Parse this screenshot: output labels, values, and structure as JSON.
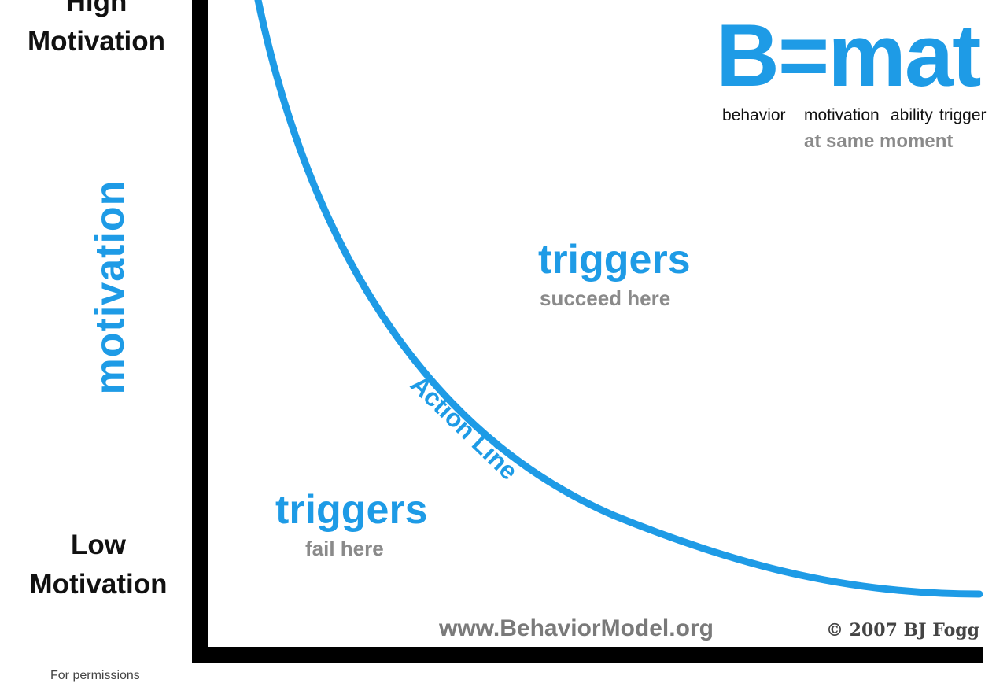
{
  "y_axis": {
    "top_label": [
      "High",
      "Motivation"
    ],
    "bottom_label": [
      "Low",
      "Motivation"
    ],
    "axis_title": "motivation"
  },
  "equation": {
    "formula": "B=mat",
    "terms": [
      "behavior",
      "motivation",
      "ability",
      "trigger"
    ],
    "note": "at same moment"
  },
  "regions": {
    "above": {
      "title": "triggers",
      "subtitle": "succeed here"
    },
    "below": {
      "title": "triggers",
      "subtitle": "fail here"
    }
  },
  "curve_label": "Action Line",
  "footer": {
    "website": "www.BehaviorModel.org",
    "copyright": "© 2007 BJ Fogg",
    "permissions": "For permissions"
  },
  "colors": {
    "accent": "#1e9be6",
    "gray": "#8a8a8a",
    "axis": "#000000"
  }
}
